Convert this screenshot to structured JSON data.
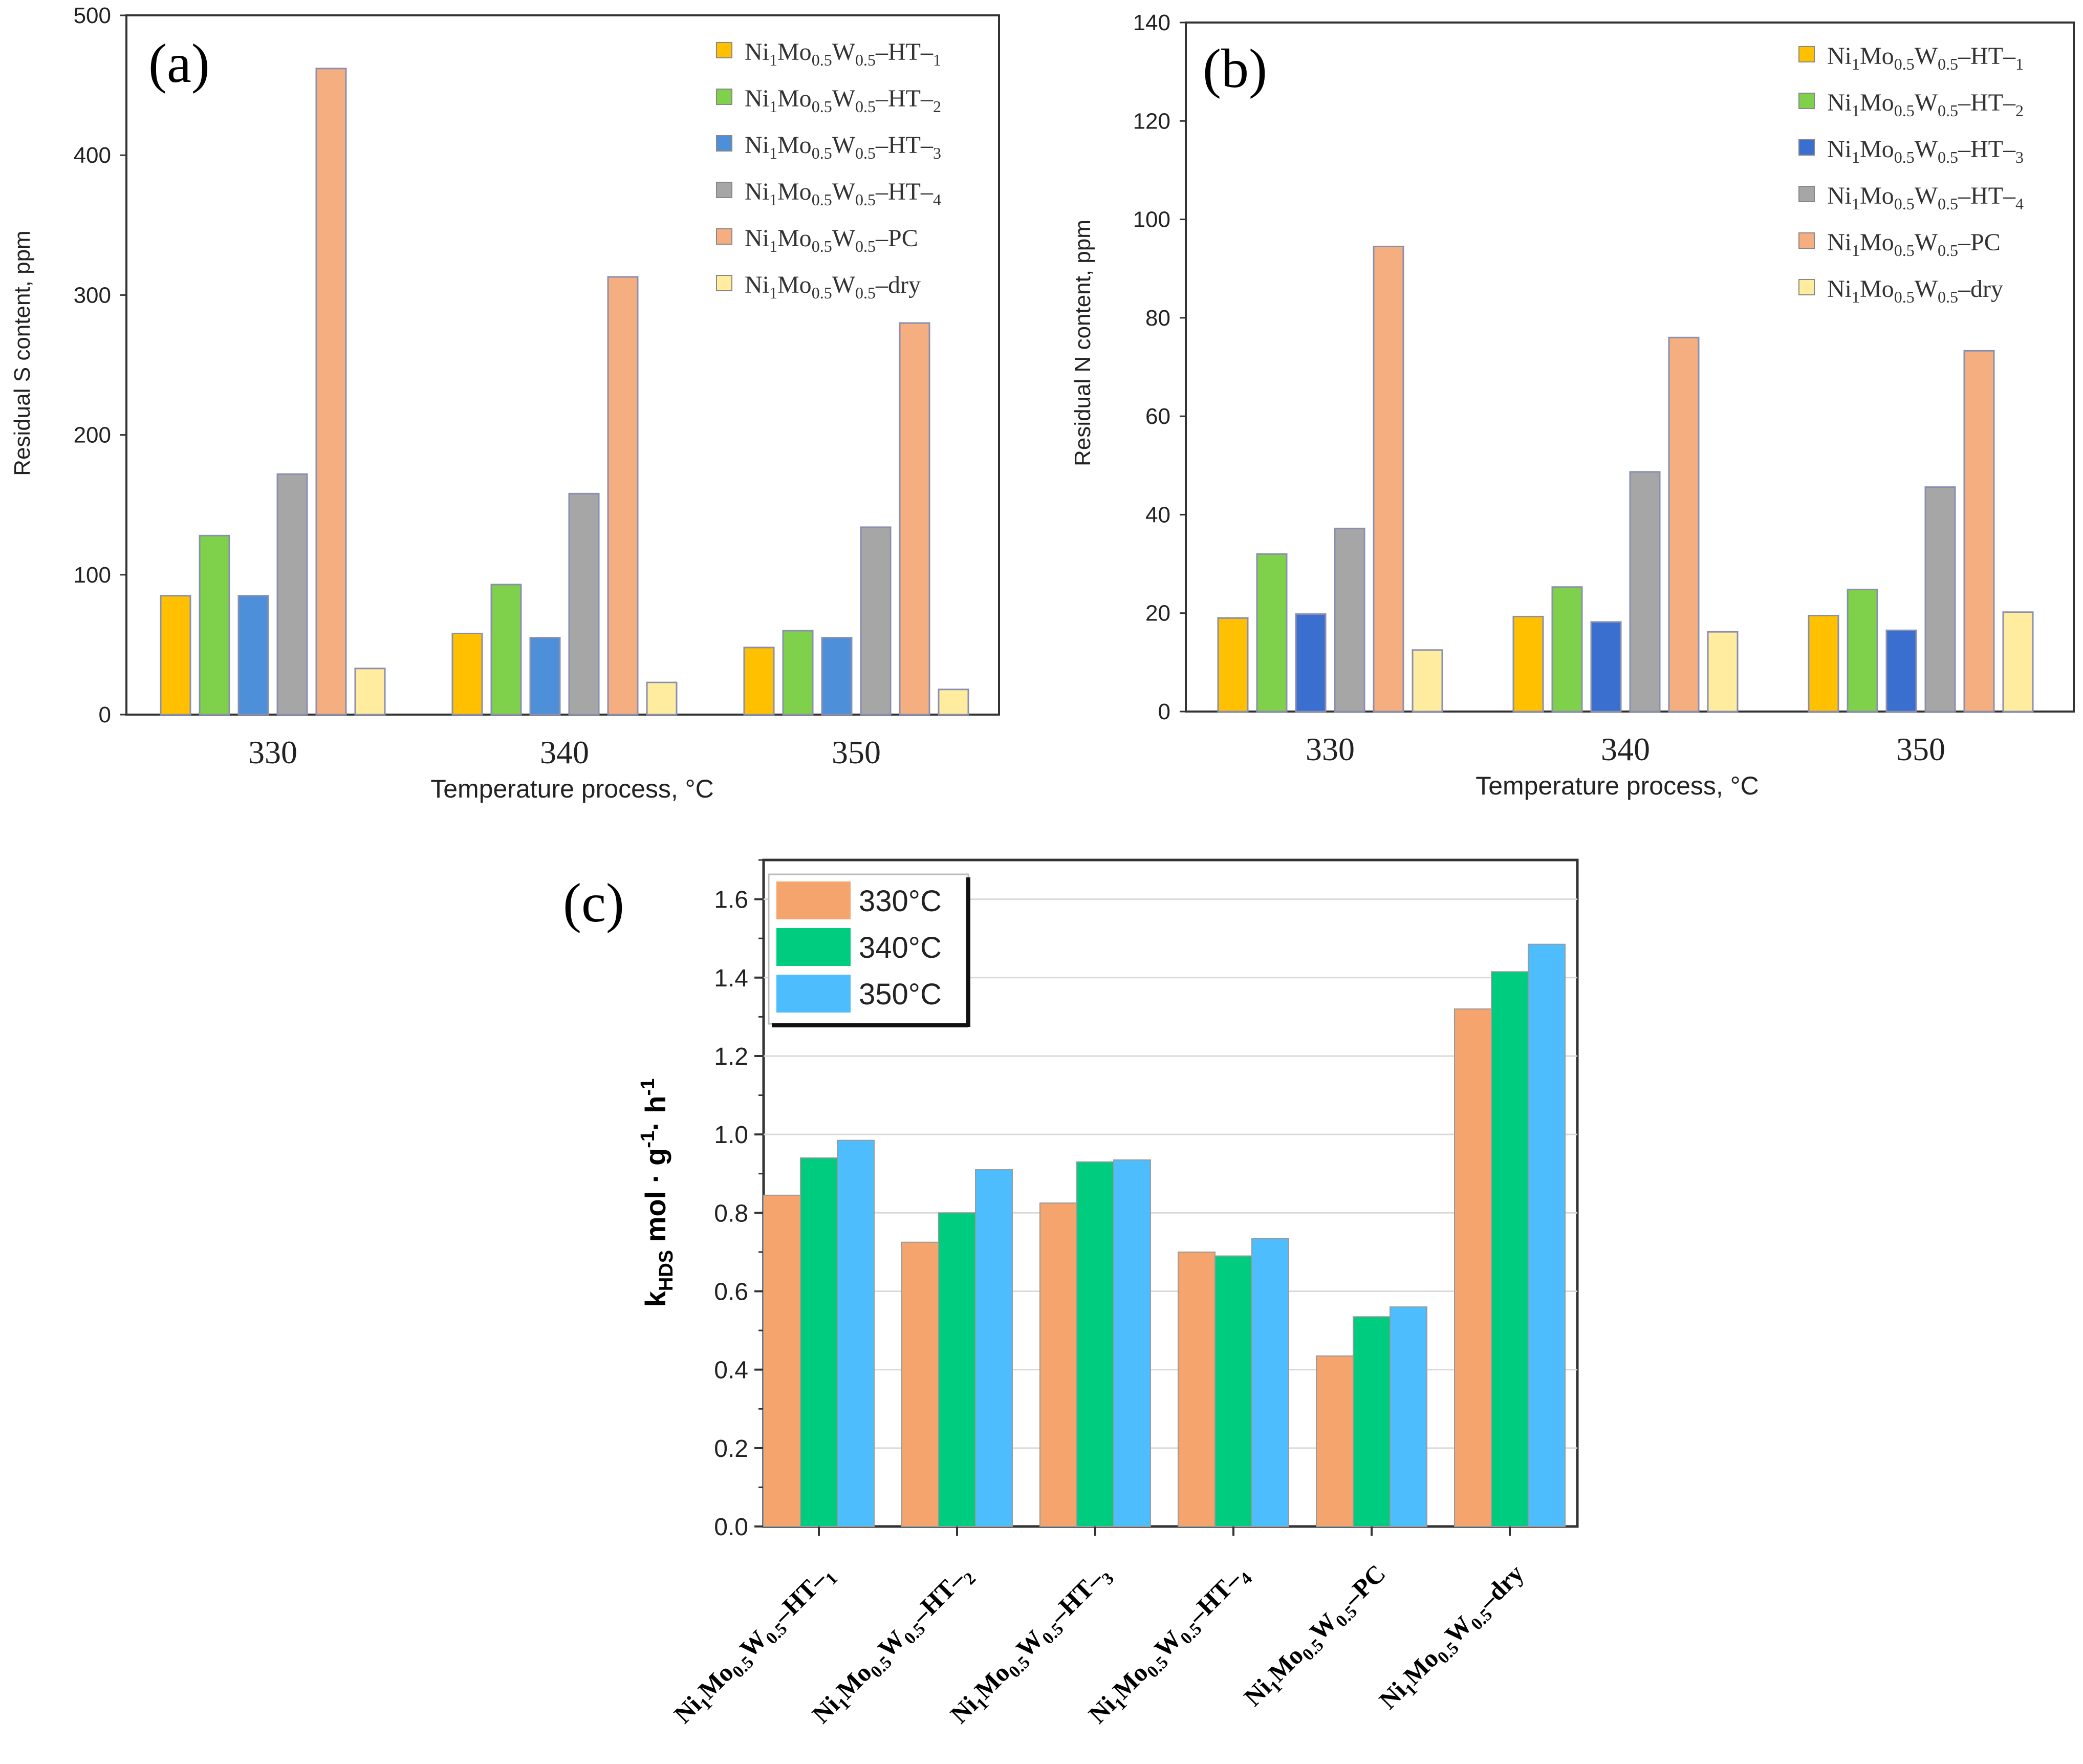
{
  "chart_data": [
    {
      "panel": "(a)",
      "type": "bar",
      "title": "",
      "xlabel": "Temperature process, °C",
      "ylabel": "Residual S content, ppm",
      "ylim": [
        0,
        500
      ],
      "yticks": [
        0,
        100,
        200,
        300,
        400,
        500
      ],
      "categories": [
        "330",
        "340",
        "350"
      ],
      "legend_position": "top-right",
      "series": [
        {
          "name": "Ni1Mo0.5W0.5–HT–1",
          "color": "#FFC000",
          "values": [
            85,
            58,
            48
          ]
        },
        {
          "name": "Ni1Mo0.5W0.5–HT–2",
          "color": "#7FD04A",
          "values": [
            128,
            93,
            60
          ]
        },
        {
          "name": "Ni1Mo0.5W0.5–HT–3",
          "color": "#4D8FD8",
          "values": [
            85,
            55,
            55
          ]
        },
        {
          "name": "Ni1Mo0.5W0.5–HT–4",
          "color": "#A6A6A6",
          "values": [
            172,
            158,
            134
          ]
        },
        {
          "name": "Ni1Mo0.5W0.5–PC",
          "color": "#F4AE80",
          "values": [
            462,
            313,
            280
          ]
        },
        {
          "name": "Ni1Mo0.5W0.5–dry",
          "color": "#FFEC9E",
          "values": [
            33,
            23,
            18
          ]
        }
      ]
    },
    {
      "panel": "(b)",
      "type": "bar",
      "title": "",
      "xlabel": "Temperature process, °C",
      "ylabel": "Residual N content, ppm",
      "ylim": [
        0,
        140
      ],
      "yticks": [
        0,
        20,
        40,
        60,
        80,
        100,
        120,
        140
      ],
      "categories": [
        "330",
        "340",
        "350"
      ],
      "legend_position": "top-right",
      "series": [
        {
          "name": "Ni1Mo0.5W0.5–HT–1",
          "color": "#FFC000",
          "values": [
            19,
            19.3,
            19.5
          ]
        },
        {
          "name": "Ni1Mo0.5W0.5–HT–2",
          "color": "#7FD04A",
          "values": [
            32,
            25.3,
            24.8
          ]
        },
        {
          "name": "Ni1Mo0.5W0.5–HT–3",
          "color": "#3A6FD0",
          "values": [
            19.8,
            18.2,
            16.5
          ]
        },
        {
          "name": "Ni1Mo0.5W0.5–HT–4",
          "color": "#A6A6A6",
          "values": [
            37.2,
            48.7,
            45.6
          ]
        },
        {
          "name": "Ni1Mo0.5W0.5–PC",
          "color": "#F4AE80",
          "values": [
            94.5,
            76,
            73.3
          ]
        },
        {
          "name": "Ni1Mo0.5W0.5–dry",
          "color": "#FFEC9E",
          "values": [
            12.5,
            16.2,
            20.2
          ]
        }
      ]
    },
    {
      "panel": "(c)",
      "type": "bar",
      "title": "",
      "xlabel": "",
      "ylabel": "kHDS mol · g-1· h-1",
      "ylim": [
        0,
        1.7
      ],
      "yticks": [
        "0.0",
        "0.2",
        "0.4",
        "0.6",
        "0.8",
        "1.0",
        "1.2",
        "1.4",
        "1.6"
      ],
      "categories": [
        "Ni1Mo0.5W0.5–HT–1",
        "Ni1Mo0.5W0.5–HT–2",
        "Ni1Mo0.5W0.5–HT–3",
        "Ni1Mo0.5W0.5–HT–4",
        "Ni1Mo0.5W0.5–PC",
        "Ni1Mo0.5W0.5–dry"
      ],
      "legend_position": "top-left",
      "grid": true,
      "series": [
        {
          "name": "330°C",
          "color": "#F4A46C",
          "values": [
            0.845,
            0.725,
            0.825,
            0.7,
            0.435,
            1.32
          ]
        },
        {
          "name": "340°C",
          "color": "#00CC80",
          "values": [
            0.94,
            0.8,
            0.93,
            0.69,
            0.535,
            1.415
          ]
        },
        {
          "name": "350°C",
          "color": "#4DBDFD",
          "values": [
            0.985,
            0.91,
            0.935,
            0.735,
            0.56,
            1.485
          ]
        }
      ]
    }
  ]
}
